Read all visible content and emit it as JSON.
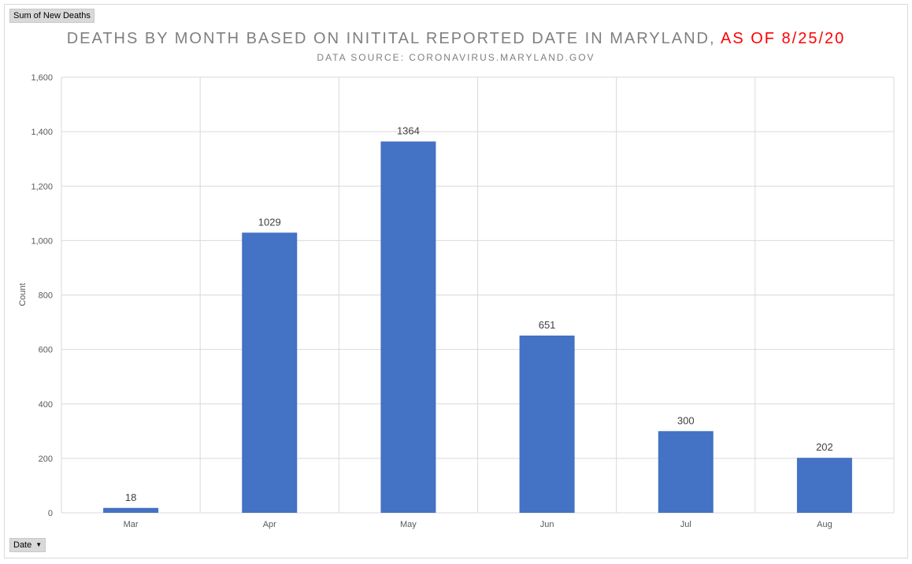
{
  "pivot": {
    "values_field": "Sum of New Deaths",
    "axis_field": "Date"
  },
  "title_main": "DEATHS BY MONTH BASED ON INITITAL REPORTED DATE IN MARYLAND,",
  "title_highlight": "AS OF 8/25/20",
  "subtitle": "DATA SOURCE: CORONAVIRUS.MARYLAND.GOV",
  "colors": {
    "bar": "#4472c4",
    "highlight": "#ff0000",
    "gridline": "#d9d9d9"
  },
  "chart_data": {
    "type": "bar",
    "categories": [
      "Mar",
      "Apr",
      "May",
      "Jun",
      "Jul",
      "Aug"
    ],
    "values": [
      18,
      1029,
      1364,
      651,
      300,
      202
    ],
    "data_labels": [
      "18",
      "1029",
      "1364",
      "651",
      "300",
      "202"
    ],
    "title": "DEATHS BY MONTH BASED ON INITITAL REPORTED DATE IN MARYLAND, AS OF 8/25/20",
    "subtitle": "DATA SOURCE: CORONAVIRUS.MARYLAND.GOV",
    "xlabel": "",
    "ylabel": "Count",
    "ylim": [
      0,
      1600
    ],
    "yticks": [
      0,
      200,
      400,
      600,
      800,
      1000,
      1200,
      1400,
      1600
    ],
    "ytick_labels": [
      "0",
      "200",
      "400",
      "600",
      "800",
      "1,000",
      "1,200",
      "1,400",
      "1,600"
    ],
    "grid": true,
    "legend": "none"
  }
}
